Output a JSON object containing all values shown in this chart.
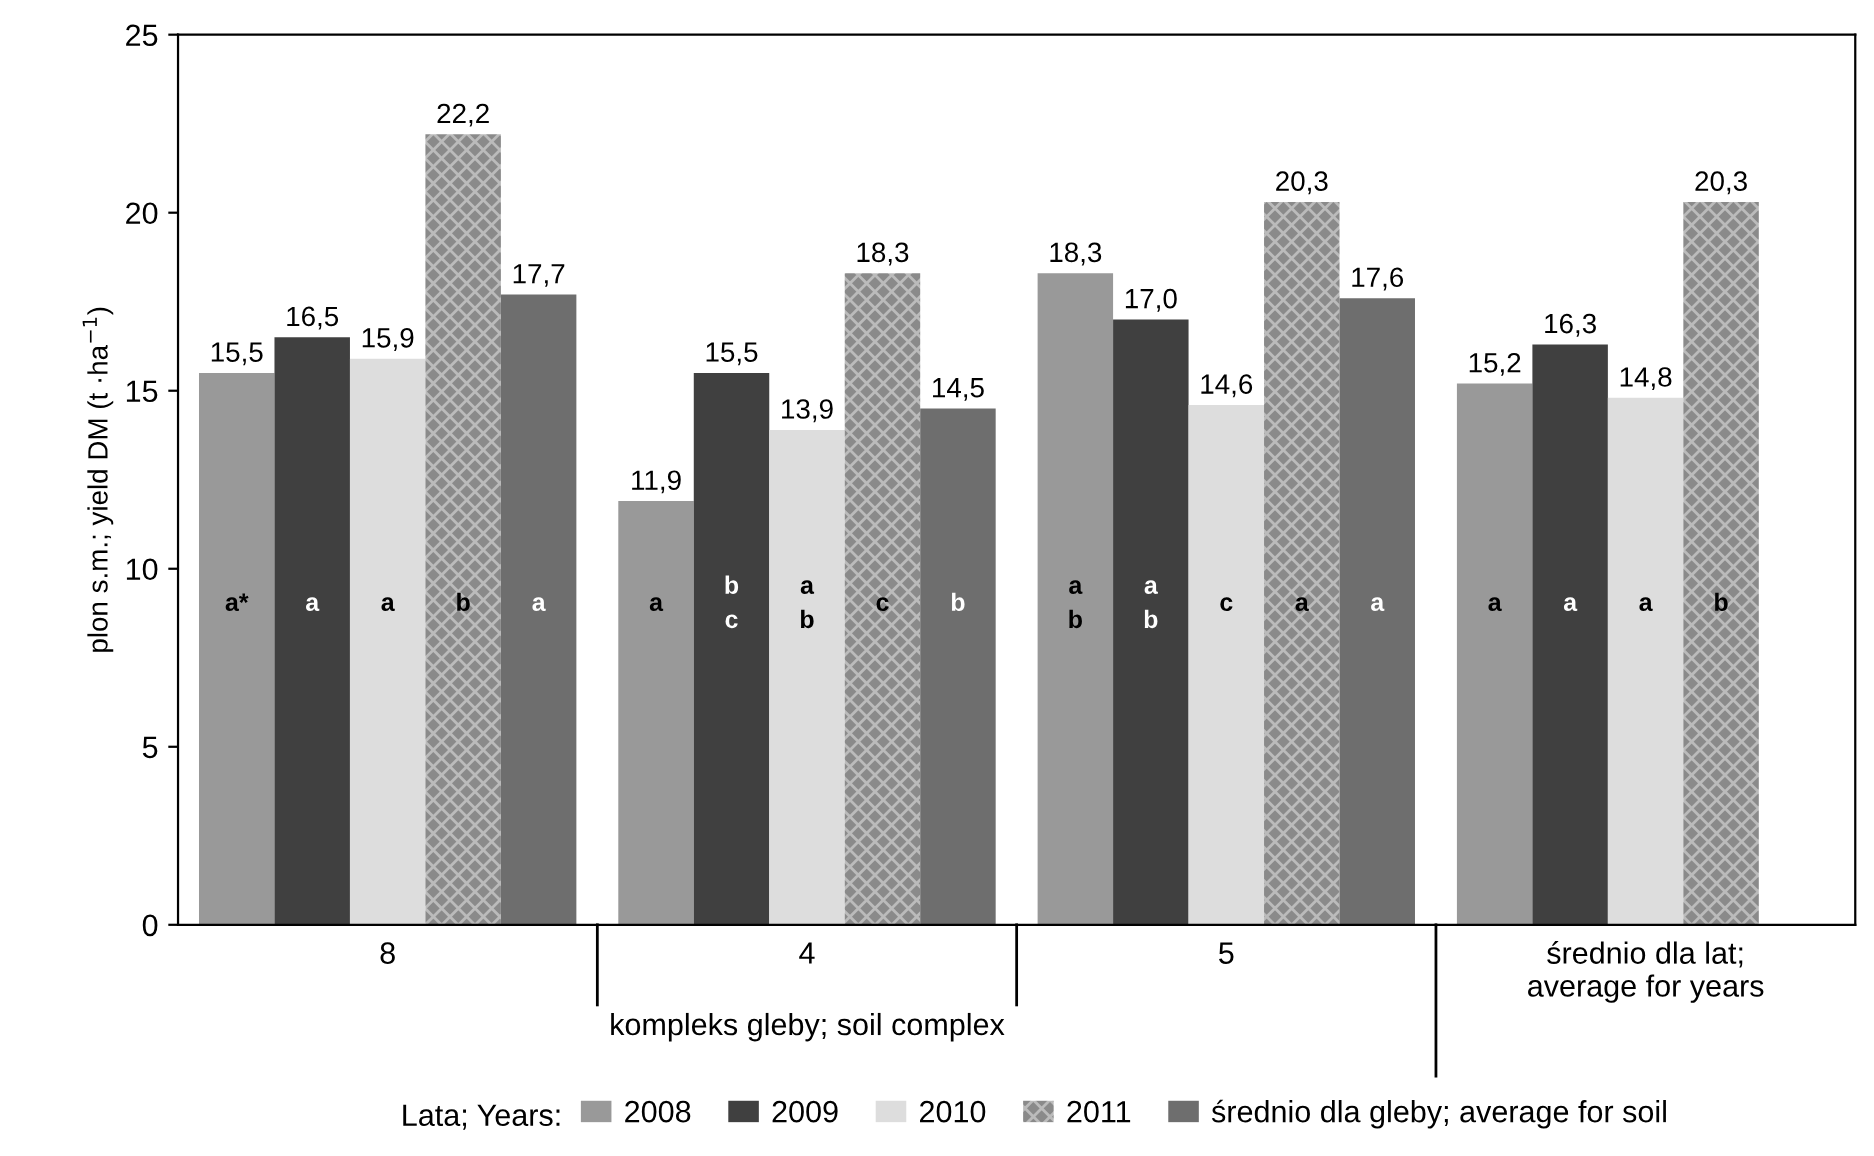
{
  "chart_data": {
    "type": "bar",
    "ylabel": "plon s.m.; yield DM (t ·ha$^{−1}$)",
    "xlabel": "kompleks gleby; soil complex",
    "legend_title": "Lata; Years:",
    "legend": "bottom",
    "ylim": [
      0,
      25
    ],
    "yticks": [
      0,
      5,
      10,
      15,
      20,
      25
    ],
    "grid": false,
    "categories": [
      "8",
      "4",
      "5",
      "średnio dla lat;\naverage for years"
    ],
    "series": [
      {
        "name": "2008",
        "color": "#999999",
        "values": [
          15.5,
          11.9,
          18.3,
          15.2
        ],
        "value_labels": [
          "15,5",
          "11,9",
          "18,3",
          "15,2"
        ]
      },
      {
        "name": "2009",
        "color": "#404040",
        "values": [
          16.5,
          15.5,
          17.0,
          16.3
        ],
        "value_labels": [
          "16,5",
          "15,5",
          "17,0",
          "16,3"
        ]
      },
      {
        "name": "2010",
        "color": "#dddddd",
        "values": [
          15.9,
          13.9,
          14.6,
          14.8
        ],
        "value_labels": [
          "15,9",
          "13,9",
          "14,6",
          "14,8"
        ]
      },
      {
        "name": "2011",
        "color": "#8a8a8a",
        "values": [
          22.2,
          18.3,
          20.3,
          20.3
        ],
        "value_labels": [
          "22,2",
          "18,3",
          "20,3",
          "20,3"
        ]
      },
      {
        "name": "średnio dla gleby; average for soil",
        "color": "#6e6e6e",
        "values": [
          17.7,
          14.5,
          17.6,
          null
        ],
        "value_labels": [
          "17,7",
          "14,5",
          "17,6",
          null
        ]
      }
    ],
    "annotations": [
      "a*",
      "a",
      "a",
      "b",
      "a",
      "a",
      "b\nc",
      "a\nb",
      "c",
      "b",
      "a\nb",
      "a\nb",
      "c",
      "a",
      "a",
      "a",
      "a",
      "a",
      "b"
    ]
  }
}
